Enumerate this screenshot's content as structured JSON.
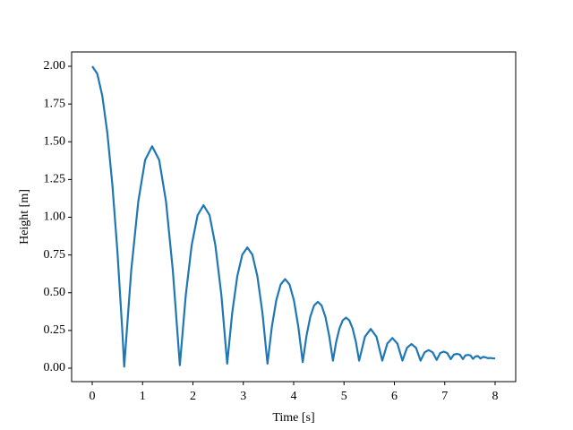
{
  "chart_data": {
    "type": "line",
    "xlabel": "Time [s]",
    "ylabel": "Height [m]",
    "x": [
      0,
      0.1,
      0.2,
      0.3,
      0.4,
      0.5,
      0.6,
      0.635,
      0.775,
      0.915,
      1.05,
      1.19,
      1.33,
      1.465,
      1.6,
      1.74,
      1.8575,
      1.975,
      2.0925,
      2.21,
      2.33,
      2.445,
      2.565,
      2.68,
      2.78,
      2.88,
      2.98,
      3.08,
      3.18,
      3.28,
      3.38,
      3.48,
      3.5675,
      3.655,
      3.7425,
      3.83,
      3.9175,
      4.005,
      4.0925,
      4.18,
      4.255,
      4.33,
      4.405,
      4.48,
      4.555,
      4.63,
      4.705,
      4.78,
      4.845,
      4.91,
      4.975,
      5.04,
      5.105,
      5.17,
      5.235,
      5.3,
      5.415,
      5.53,
      5.645,
      5.76,
      5.86,
      5.96,
      6.06,
      6.16,
      6.25,
      6.34,
      6.43,
      6.52,
      6.6,
      6.68,
      6.76,
      6.84,
      6.91,
      6.98,
      7.05,
      7.12,
      7.18,
      7.24,
      7.3,
      7.36,
      7.41,
      7.46,
      7.51,
      7.56,
      7.61,
      7.66,
      7.71,
      7.76,
      7.81,
      7.86,
      7.91,
      7.96,
      8.0
    ],
    "series": [
      {
        "color": "#1f77b4",
        "values": [
          2.0,
          1.951,
          1.804,
          1.559,
          1.215,
          0.774,
          0.234,
          0.01,
          0.649,
          1.105,
          1.379,
          1.47,
          1.379,
          1.105,
          0.65,
          0.02,
          0.484,
          0.815,
          1.014,
          1.08,
          1.014,
          0.815,
          0.484,
          0.03,
          0.367,
          0.608,
          0.752,
          0.8,
          0.752,
          0.608,
          0.367,
          0.03,
          0.275,
          0.45,
          0.555,
          0.59,
          0.555,
          0.45,
          0.275,
          0.04,
          0.215,
          0.34,
          0.415,
          0.44,
          0.415,
          0.34,
          0.215,
          0.05,
          0.175,
          0.264,
          0.317,
          0.335,
          0.317,
          0.264,
          0.175,
          0.05,
          0.208,
          0.26,
          0.208,
          0.05,
          0.163,
          0.2,
          0.163,
          0.05,
          0.135,
          0.16,
          0.135,
          0.05,
          0.105,
          0.12,
          0.105,
          0.055,
          0.1,
          0.11,
          0.1,
          0.06,
          0.09,
          0.095,
          0.09,
          0.06,
          0.085,
          0.088,
          0.085,
          0.062,
          0.078,
          0.08,
          0.064,
          0.075,
          0.072,
          0.066,
          0.068,
          0.065,
          0.065
        ]
      }
    ],
    "xlim": [
      -0.409,
      8.409
    ],
    "ylim": [
      -0.089,
      2.095
    ],
    "xticks": [
      0,
      1,
      2,
      3,
      4,
      5,
      6,
      7,
      8
    ],
    "yticks": [
      {
        "value": 0,
        "label": "0.00"
      },
      {
        "value": 0.25,
        "label": "0.25"
      },
      {
        "value": 0.5,
        "label": "0.50"
      },
      {
        "value": 0.75,
        "label": "0.75"
      },
      {
        "value": 1,
        "label": "1.00"
      },
      {
        "value": 1.25,
        "label": "1.25"
      },
      {
        "value": 1.5,
        "label": "1.50"
      },
      {
        "value": 1.75,
        "label": "1.75"
      },
      {
        "value": 2,
        "label": "2.00"
      }
    ],
    "grid": false
  }
}
